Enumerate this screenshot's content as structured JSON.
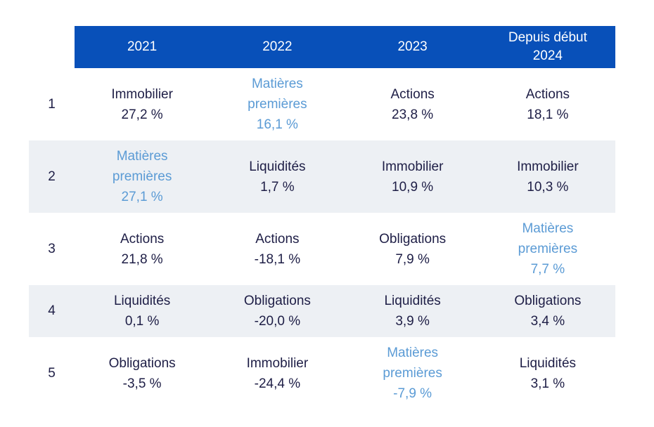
{
  "colors": {
    "header_bg": "#0850b9",
    "header_text": "#ffffff",
    "stripe_bg": "#edf0f4",
    "text_dark": "#1e1e46",
    "text_highlight": "#5b9bd5"
  },
  "chart_data": {
    "type": "table",
    "description": "Ranking of asset class performance by year, ranks 1-5",
    "columns": [
      "2021",
      "2022",
      "2023",
      "Depuis début 2024"
    ],
    "rows": [
      {
        "rank": "1",
        "cells": [
          {
            "asset": "Immobilier",
            "value": "27,2 %",
            "highlight": false
          },
          {
            "asset": "Matières premières",
            "value": "16,1 %",
            "highlight": true
          },
          {
            "asset": "Actions",
            "value": "23,8 %",
            "highlight": false
          },
          {
            "asset": "Actions",
            "value": "18,1 %",
            "highlight": false
          }
        ]
      },
      {
        "rank": "2",
        "cells": [
          {
            "asset": "Matières premières",
            "value": "27,1 %",
            "highlight": true
          },
          {
            "asset": "Liquidités",
            "value": "1,7 %",
            "highlight": false
          },
          {
            "asset": "Immobilier",
            "value": "10,9 %",
            "highlight": false
          },
          {
            "asset": "Immobilier",
            "value": "10,3 %",
            "highlight": false
          }
        ]
      },
      {
        "rank": "3",
        "cells": [
          {
            "asset": "Actions",
            "value": "21,8 %",
            "highlight": false
          },
          {
            "asset": "Actions",
            "value": "-18,1 %",
            "highlight": false
          },
          {
            "asset": "Obligations",
            "value": "7,9 %",
            "highlight": false
          },
          {
            "asset": "Matières premières",
            "value": "7,7 %",
            "highlight": true
          }
        ]
      },
      {
        "rank": "4",
        "cells": [
          {
            "asset": "Liquidités",
            "value": "0,1 %",
            "highlight": false
          },
          {
            "asset": "Obligations",
            "value": "-20,0 %",
            "highlight": false
          },
          {
            "asset": "Liquidités",
            "value": "3,9 %",
            "highlight": false
          },
          {
            "asset": "Obligations",
            "value": "3,4 %",
            "highlight": false
          }
        ]
      },
      {
        "rank": "5",
        "cells": [
          {
            "asset": "Obligations",
            "value": "-3,5 %",
            "highlight": false
          },
          {
            "asset": "Immobilier",
            "value": "-24,4 %",
            "highlight": false
          },
          {
            "asset": "Matières premières",
            "value": "-7,9 %",
            "highlight": true
          },
          {
            "asset": "Liquidités",
            "value": "3,1 %",
            "highlight": false
          }
        ]
      }
    ]
  }
}
